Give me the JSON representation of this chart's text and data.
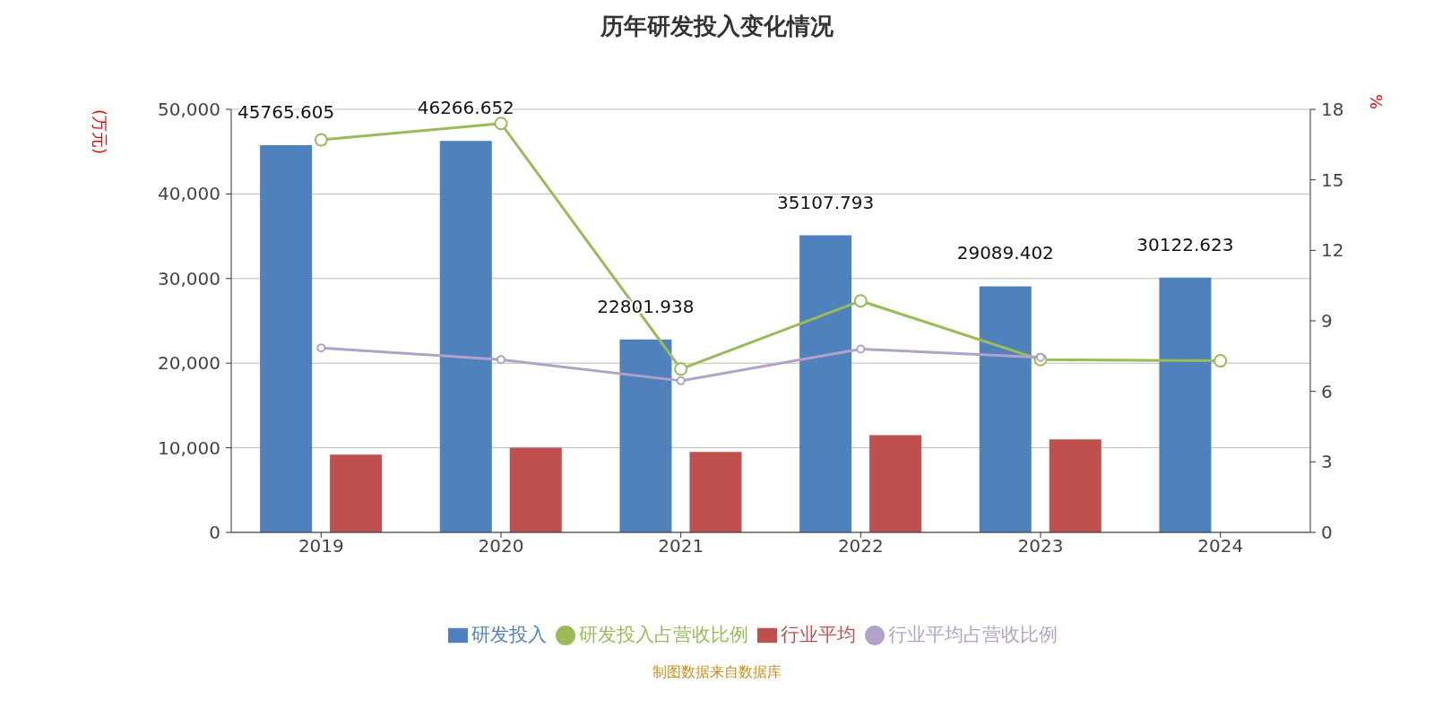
{
  "chart_data": {
    "type": "bar",
    "title": "历年研发投入变化情况",
    "ylabel": "(万元)",
    "y2label": "%",
    "categories": [
      "2019",
      "2020",
      "2021",
      "2022",
      "2023",
      "2024"
    ],
    "series": [
      {
        "name": "研发投入",
        "color": "#4f81bd",
        "values": [
          45765.605,
          46266.652,
          22801.938,
          35107.793,
          29089.402,
          30122.623
        ],
        "value_labels": [
          "45765.605",
          "46266.652",
          "22801.938",
          "35107.793",
          "29089.402",
          "30122.623"
        ]
      },
      {
        "name": "研发投入占营收比例",
        "type": "line",
        "axis": "y2",
        "color": "#9bbb59",
        "values": [
          16.7,
          17.4,
          6.95,
          9.85,
          7.35,
          7.3
        ]
      },
      {
        "name": "行业平均",
        "color": "#c0504d",
        "values": [
          9200,
          10000,
          9500,
          11500,
          11000,
          null
        ]
      },
      {
        "name": "行业平均占营收比例",
        "type": "line",
        "axis": "y2",
        "color": "#b3a2c7",
        "values": [
          7.85,
          7.35,
          6.45,
          7.8,
          7.45,
          null
        ]
      }
    ],
    "ylim": [
      0,
      50000
    ],
    "yticks": [
      0,
      {
        "value": 10000,
        "label": "10,000"
      },
      {
        "value": 20000,
        "label": "20,000"
      },
      {
        "value": 30000,
        "label": "30,000"
      },
      {
        "value": 40000,
        "label": "40,000"
      },
      {
        "value": 50000,
        "label": "50,000"
      }
    ],
    "y2lim": [
      0,
      18
    ],
    "y2ticks": [
      0,
      3,
      6,
      9,
      12,
      15,
      18
    ],
    "grid": "y",
    "legend": "bottom",
    "marker": "circle",
    "annotations": [
      "制图数据来自数据库"
    ]
  }
}
